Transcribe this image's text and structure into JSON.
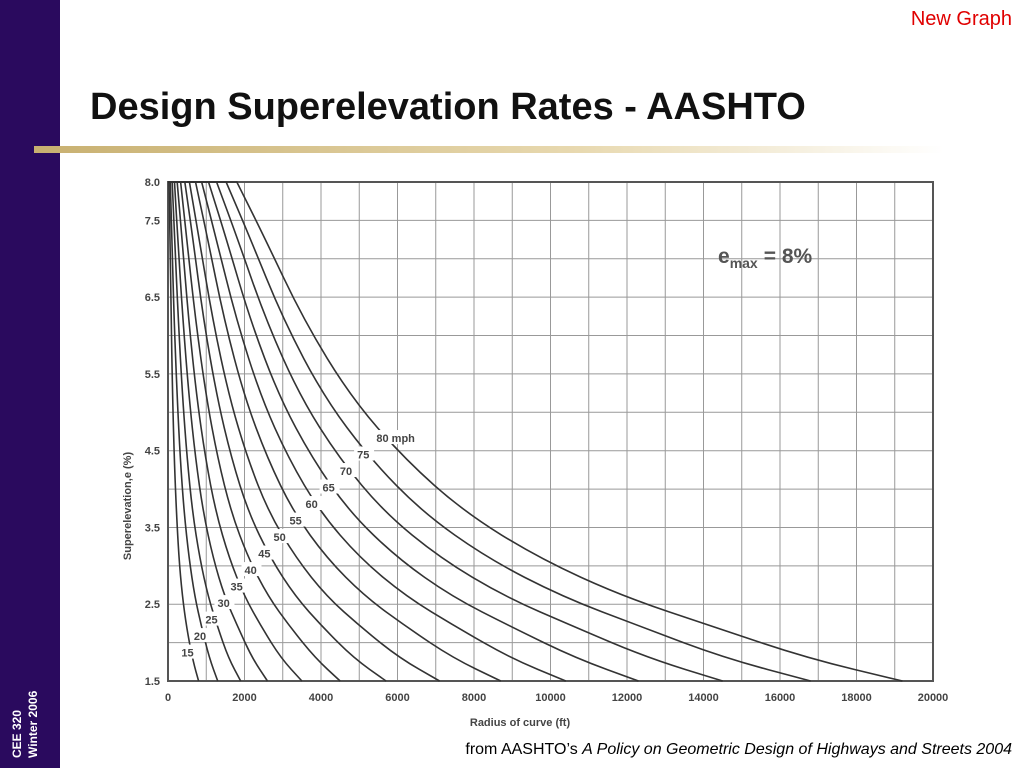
{
  "slide": {
    "corner_link": "New Graph",
    "title": "Design Superelevation Rates - AASHTO",
    "source_prefix": "from AASHTO’s ",
    "source_title": "A Policy on Geometric Design of Highways and Streets 2004",
    "course_line1": "CEE 320",
    "course_line2": "Winter 2006"
  },
  "colors": {
    "sidebar": "#2a0a5e",
    "link": "#e00000",
    "curve": "#333333",
    "grid": "#999999"
  },
  "chart_data": {
    "type": "line",
    "annotation": "= 8%",
    "annotation_symbol": "e",
    "annotation_subscript": "max",
    "xlabel": "Radius of curve (ft)",
    "ylabel": "Superelevation,e (%)",
    "xlim": [
      0,
      20000
    ],
    "ylim": [
      1.5,
      8.0
    ],
    "x_ticks": [
      0,
      2000,
      4000,
      6000,
      8000,
      10000,
      12000,
      14000,
      16000,
      18000,
      20000
    ],
    "y_ticks": [
      1.5,
      2.5,
      3.5,
      4.5,
      5.5,
      6.5,
      7.5,
      8.0
    ],
    "y_tick_labels": [
      "1.5",
      "2.5",
      "3.5",
      "4.5",
      "5.5",
      "6.5",
      "7.5",
      "8.0"
    ],
    "grid": true,
    "series": [
      {
        "name": "15",
        "x": [
          25,
          50,
          80,
          120,
          170,
          230,
          300,
          400,
          520,
          660,
          800
        ],
        "y": [
          8.0,
          7.4,
          6.3,
          5.2,
          4.3,
          3.6,
          3.0,
          2.5,
          2.1,
          1.75,
          1.5
        ]
      },
      {
        "name": "20",
        "x": [
          60,
          100,
          160,
          240,
          320,
          420,
          550,
          700,
          880,
          1080,
          1300
        ],
        "y": [
          8.0,
          7.3,
          6.2,
          5.2,
          4.4,
          3.7,
          3.1,
          2.6,
          2.2,
          1.8,
          1.5
        ]
      },
      {
        "name": "25",
        "x": [
          110,
          170,
          270,
          380,
          500,
          640,
          830,
          1050,
          1300,
          1580,
          1900
        ],
        "y": [
          8.0,
          7.3,
          6.2,
          5.2,
          4.4,
          3.7,
          3.1,
          2.6,
          2.2,
          1.8,
          1.5
        ]
      },
      {
        "name": "30",
        "x": [
          170,
          250,
          390,
          550,
          720,
          920,
          1180,
          1480,
          1830,
          2200,
          2600
        ],
        "y": [
          8.0,
          7.3,
          6.2,
          5.2,
          4.4,
          3.7,
          3.1,
          2.6,
          2.2,
          1.8,
          1.5
        ]
      },
      {
        "name": "35",
        "x": [
          240,
          360,
          540,
          750,
          980,
          1250,
          1600,
          2000,
          2450,
          2950,
          3500
        ],
        "y": [
          8.0,
          7.3,
          6.2,
          5.2,
          4.4,
          3.7,
          3.1,
          2.6,
          2.2,
          1.8,
          1.5
        ]
      },
      {
        "name": "40",
        "x": [
          330,
          480,
          720,
          1000,
          1300,
          1650,
          2100,
          2620,
          3200,
          3850,
          4500
        ],
        "y": [
          8.0,
          7.3,
          6.2,
          5.2,
          4.4,
          3.7,
          3.1,
          2.6,
          2.2,
          1.8,
          1.5
        ]
      },
      {
        "name": "45",
        "x": [
          440,
          640,
          930,
          1280,
          1660,
          2100,
          2680,
          3330,
          4050,
          4850,
          5700
        ],
        "y": [
          8.0,
          7.3,
          6.2,
          5.2,
          4.4,
          3.7,
          3.1,
          2.6,
          2.2,
          1.8,
          1.5
        ]
      },
      {
        "name": "50",
        "x": [
          560,
          800,
          1170,
          1600,
          2080,
          2630,
          3350,
          4150,
          5050,
          6050,
          7100
        ],
        "y": [
          8.0,
          7.3,
          6.2,
          5.2,
          4.4,
          3.7,
          3.1,
          2.6,
          2.2,
          1.8,
          1.5
        ]
      },
      {
        "name": "55",
        "x": [
          720,
          1020,
          1470,
          2000,
          2600,
          3280,
          4150,
          5150,
          6250,
          7450,
          8700
        ],
        "y": [
          8.0,
          7.3,
          6.2,
          5.2,
          4.4,
          3.7,
          3.1,
          2.6,
          2.2,
          1.8,
          1.5
        ]
      },
      {
        "name": "60",
        "x": [
          880,
          1240,
          1790,
          2430,
          3150,
          3980,
          5020,
          6230,
          7550,
          8950,
          10400
        ],
        "y": [
          8.0,
          7.3,
          6.2,
          5.2,
          4.4,
          3.7,
          3.1,
          2.6,
          2.2,
          1.8,
          1.5
        ]
      },
      {
        "name": "65",
        "x": [
          1060,
          1500,
          2150,
          2910,
          3770,
          4750,
          6000,
          7420,
          9000,
          10650,
          12300
        ],
        "y": [
          8.0,
          7.3,
          6.2,
          5.2,
          4.4,
          3.7,
          3.1,
          2.6,
          2.2,
          1.8,
          1.5
        ]
      },
      {
        "name": "70",
        "x": [
          1270,
          1790,
          2560,
          3460,
          4480,
          5650,
          7120,
          8800,
          10650,
          12550,
          14500
        ],
        "y": [
          8.0,
          7.3,
          6.2,
          5.2,
          4.4,
          3.7,
          3.1,
          2.6,
          2.2,
          1.8,
          1.5
        ]
      },
      {
        "name": "75",
        "x": [
          1520,
          2120,
          3020,
          4080,
          5280,
          6650,
          8350,
          10300,
          12400,
          14550,
          16800
        ],
        "y": [
          8.0,
          7.3,
          6.2,
          5.2,
          4.4,
          3.7,
          3.1,
          2.6,
          2.2,
          1.8,
          1.5
        ]
      },
      {
        "name": "80 mph",
        "x": [
          1800,
          2500,
          3550,
          4780,
          6170,
          7750,
          9700,
          11900,
          14300,
          16700,
          19200
        ],
        "y": [
          8.0,
          7.3,
          6.2,
          5.2,
          4.4,
          3.7,
          3.1,
          2.6,
          2.2,
          1.8,
          1.5
        ]
      }
    ]
  }
}
